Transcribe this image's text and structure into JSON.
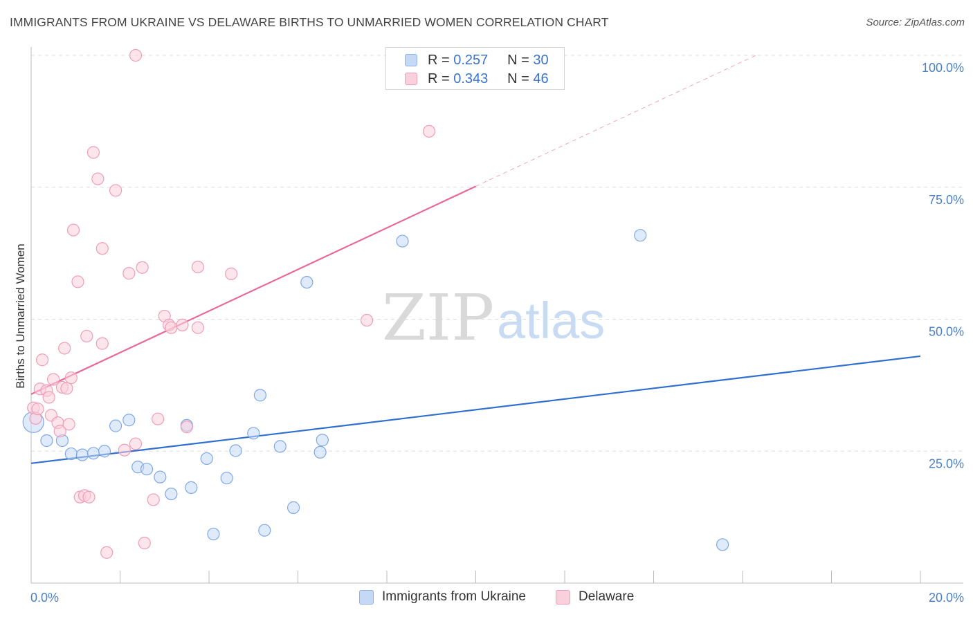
{
  "header": {
    "title": "IMMIGRANTS FROM UKRAINE VS DELAWARE BIRTHS TO UNMARRIED WOMEN CORRELATION CHART",
    "source": "Source: ZipAtlas.com"
  },
  "watermark": {
    "zip": "ZIP",
    "atlas": "atlas"
  },
  "legend": {
    "r_label": "R =",
    "n_label": "N =",
    "series": [
      {
        "r": "0.257",
        "n": "30"
      },
      {
        "r": "0.343",
        "n": "46"
      }
    ]
  },
  "bottom_legend": [
    "Immigrants from Ukraine",
    "Delaware"
  ],
  "colors": {
    "blue_fill": "#c5d8f5",
    "blue_stroke": "#7fa8e4",
    "blue_line": "#2f6fd0",
    "pink_fill": "#fbd0dd",
    "pink_stroke": "#f09db7",
    "pink_line": "#e8689a",
    "grid": "#dddddd",
    "tick_text": "#4a7fc8"
  },
  "chart_data": {
    "type": "scatter",
    "title": "IMMIGRANTS FROM UKRAINE VS DELAWARE BIRTHS TO UNMARRIED WOMEN CORRELATION CHART",
    "xlabel": "",
    "ylabel": "Births to Unmarried Women",
    "xlim": [
      0,
      20
    ],
    "ylim": [
      0,
      100
    ],
    "x_tick_labels": [
      "0.0%",
      "20.0%"
    ],
    "y_ticks": [
      25,
      50,
      75,
      100
    ],
    "y_tick_labels": [
      "25.0%",
      "50.0%",
      "75.0%",
      "100.0%"
    ],
    "series": [
      {
        "name": "Immigrants from Ukraine",
        "r": 0.257,
        "n": 30,
        "trend": {
          "x": [
            0,
            20
          ],
          "y": [
            22.7,
            43.0
          ],
          "solid_to_x": 20
        },
        "points": [
          {
            "x": 0.05,
            "y": 30.5,
            "big": true
          },
          {
            "x": 0.35,
            "y": 27.0
          },
          {
            "x": 0.7,
            "y": 27.0
          },
          {
            "x": 0.9,
            "y": 24.5
          },
          {
            "x": 1.15,
            "y": 24.3
          },
          {
            "x": 1.4,
            "y": 24.6
          },
          {
            "x": 1.65,
            "y": 25.0
          },
          {
            "x": 1.9,
            "y": 29.8
          },
          {
            "x": 2.2,
            "y": 30.9
          },
          {
            "x": 2.4,
            "y": 22.0
          },
          {
            "x": 2.6,
            "y": 21.6
          },
          {
            "x": 2.9,
            "y": 20.1
          },
          {
            "x": 3.15,
            "y": 16.9
          },
          {
            "x": 3.5,
            "y": 29.9
          },
          {
            "x": 3.6,
            "y": 18.1
          },
          {
            "x": 3.95,
            "y": 23.6
          },
          {
            "x": 4.1,
            "y": 9.3
          },
          {
            "x": 4.4,
            "y": 19.9
          },
          {
            "x": 4.6,
            "y": 25.1
          },
          {
            "x": 5.0,
            "y": 28.4
          },
          {
            "x": 5.15,
            "y": 35.6
          },
          {
            "x": 5.25,
            "y": 10.0
          },
          {
            "x": 5.6,
            "y": 25.9
          },
          {
            "x": 5.9,
            "y": 14.3
          },
          {
            "x": 6.2,
            "y": 57.0
          },
          {
            "x": 6.5,
            "y": 24.8
          },
          {
            "x": 6.55,
            "y": 27.1
          },
          {
            "x": 8.35,
            "y": 64.8
          },
          {
            "x": 13.7,
            "y": 65.9
          },
          {
            "x": 15.55,
            "y": 7.3
          }
        ]
      },
      {
        "name": "Delaware",
        "r": 0.343,
        "n": 46,
        "trend": {
          "x": [
            0,
            16.3
          ],
          "y": [
            35.8,
            100
          ],
          "solid_to_x": 10.0
        },
        "points": [
          {
            "x": 0.05,
            "y": 33.2
          },
          {
            "x": 0.1,
            "y": 31.2
          },
          {
            "x": 0.15,
            "y": 33.0
          },
          {
            "x": 0.2,
            "y": 36.8
          },
          {
            "x": 0.25,
            "y": 42.3
          },
          {
            "x": 0.35,
            "y": 36.5
          },
          {
            "x": 0.4,
            "y": 35.2
          },
          {
            "x": 0.45,
            "y": 31.8
          },
          {
            "x": 0.5,
            "y": 38.6
          },
          {
            "x": 0.6,
            "y": 30.4
          },
          {
            "x": 0.65,
            "y": 28.8
          },
          {
            "x": 0.7,
            "y": 37.1
          },
          {
            "x": 0.75,
            "y": 44.5
          },
          {
            "x": 0.8,
            "y": 36.9
          },
          {
            "x": 0.85,
            "y": 30.1
          },
          {
            "x": 0.9,
            "y": 38.9
          },
          {
            "x": 0.95,
            "y": 66.9
          },
          {
            "x": 1.05,
            "y": 57.1
          },
          {
            "x": 1.1,
            "y": 16.3
          },
          {
            "x": 1.2,
            "y": 16.6
          },
          {
            "x": 1.25,
            "y": 46.8
          },
          {
            "x": 1.3,
            "y": 16.3
          },
          {
            "x": 1.4,
            "y": 81.6
          },
          {
            "x": 1.5,
            "y": 76.6
          },
          {
            "x": 1.6,
            "y": 45.4
          },
          {
            "x": 1.6,
            "y": 63.4
          },
          {
            "x": 1.7,
            "y": 5.8
          },
          {
            "x": 1.9,
            "y": 74.4
          },
          {
            "x": 2.1,
            "y": 25.2
          },
          {
            "x": 2.2,
            "y": 58.7
          },
          {
            "x": 2.35,
            "y": 26.4
          },
          {
            "x": 2.5,
            "y": 59.8
          },
          {
            "x": 2.55,
            "y": 7.6
          },
          {
            "x": 2.75,
            "y": 15.8
          },
          {
            "x": 2.85,
            "y": 31.1
          },
          {
            "x": 3.0,
            "y": 50.6
          },
          {
            "x": 3.1,
            "y": 48.9
          },
          {
            "x": 3.15,
            "y": 48.4
          },
          {
            "x": 3.4,
            "y": 48.9
          },
          {
            "x": 3.5,
            "y": 29.6
          },
          {
            "x": 3.75,
            "y": 59.9
          },
          {
            "x": 3.75,
            "y": 48.4
          },
          {
            "x": 4.5,
            "y": 58.6
          },
          {
            "x": 2.35,
            "y": 100.0
          },
          {
            "x": 7.55,
            "y": 49.8
          },
          {
            "x": 8.95,
            "y": 85.6
          }
        ]
      }
    ]
  }
}
